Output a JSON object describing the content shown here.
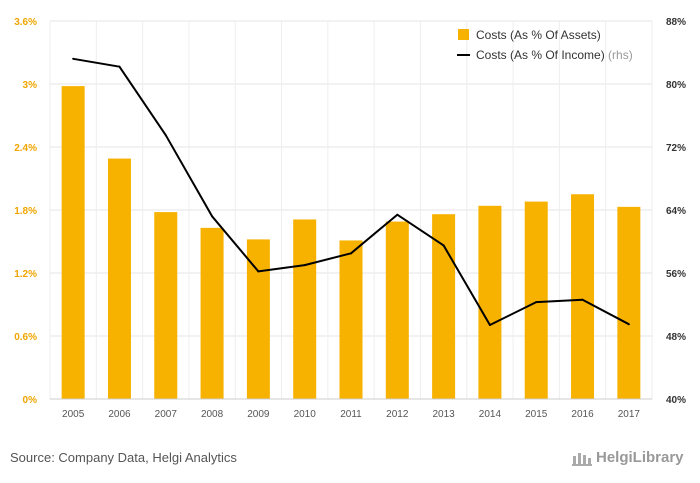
{
  "chart_data": {
    "type": "bar+line",
    "categories": [
      "2005",
      "2006",
      "2007",
      "2008",
      "2009",
      "2010",
      "2011",
      "2012",
      "2013",
      "2014",
      "2015",
      "2016",
      "2017"
    ],
    "series": [
      {
        "name": "Costs (As % Of Assets)",
        "type": "bar",
        "axis": "left",
        "color": "#f7b200",
        "values": [
          2.98,
          2.29,
          1.78,
          1.63,
          1.52,
          1.71,
          1.51,
          1.69,
          1.76,
          1.84,
          1.88,
          1.95,
          1.83
        ]
      },
      {
        "name": "Costs (As % Of Income)",
        "name_suffix": "(rhs)",
        "type": "line",
        "axis": "right",
        "color": "#000000",
        "values": [
          83.2,
          82.2,
          73.5,
          63.2,
          56.2,
          57.0,
          58.5,
          63.4,
          59.5,
          49.4,
          52.3,
          52.6,
          49.5
        ]
      }
    ],
    "y_left": {
      "min": 0,
      "max": 3.6,
      "ticks": [
        "0%",
        "0.6%",
        "1.2%",
        "1.8%",
        "2.4%",
        "3%",
        "3.6%"
      ]
    },
    "y_right": {
      "min": 40,
      "max": 88,
      "ticks": [
        "40%",
        "48%",
        "56%",
        "64%",
        "72%",
        "80%",
        "88%"
      ]
    },
    "grid": true,
    "legend": "top-right"
  },
  "footer": {
    "source": "Source: Company Data, Helgi Analytics",
    "brand": "HelgiLibrary"
  }
}
